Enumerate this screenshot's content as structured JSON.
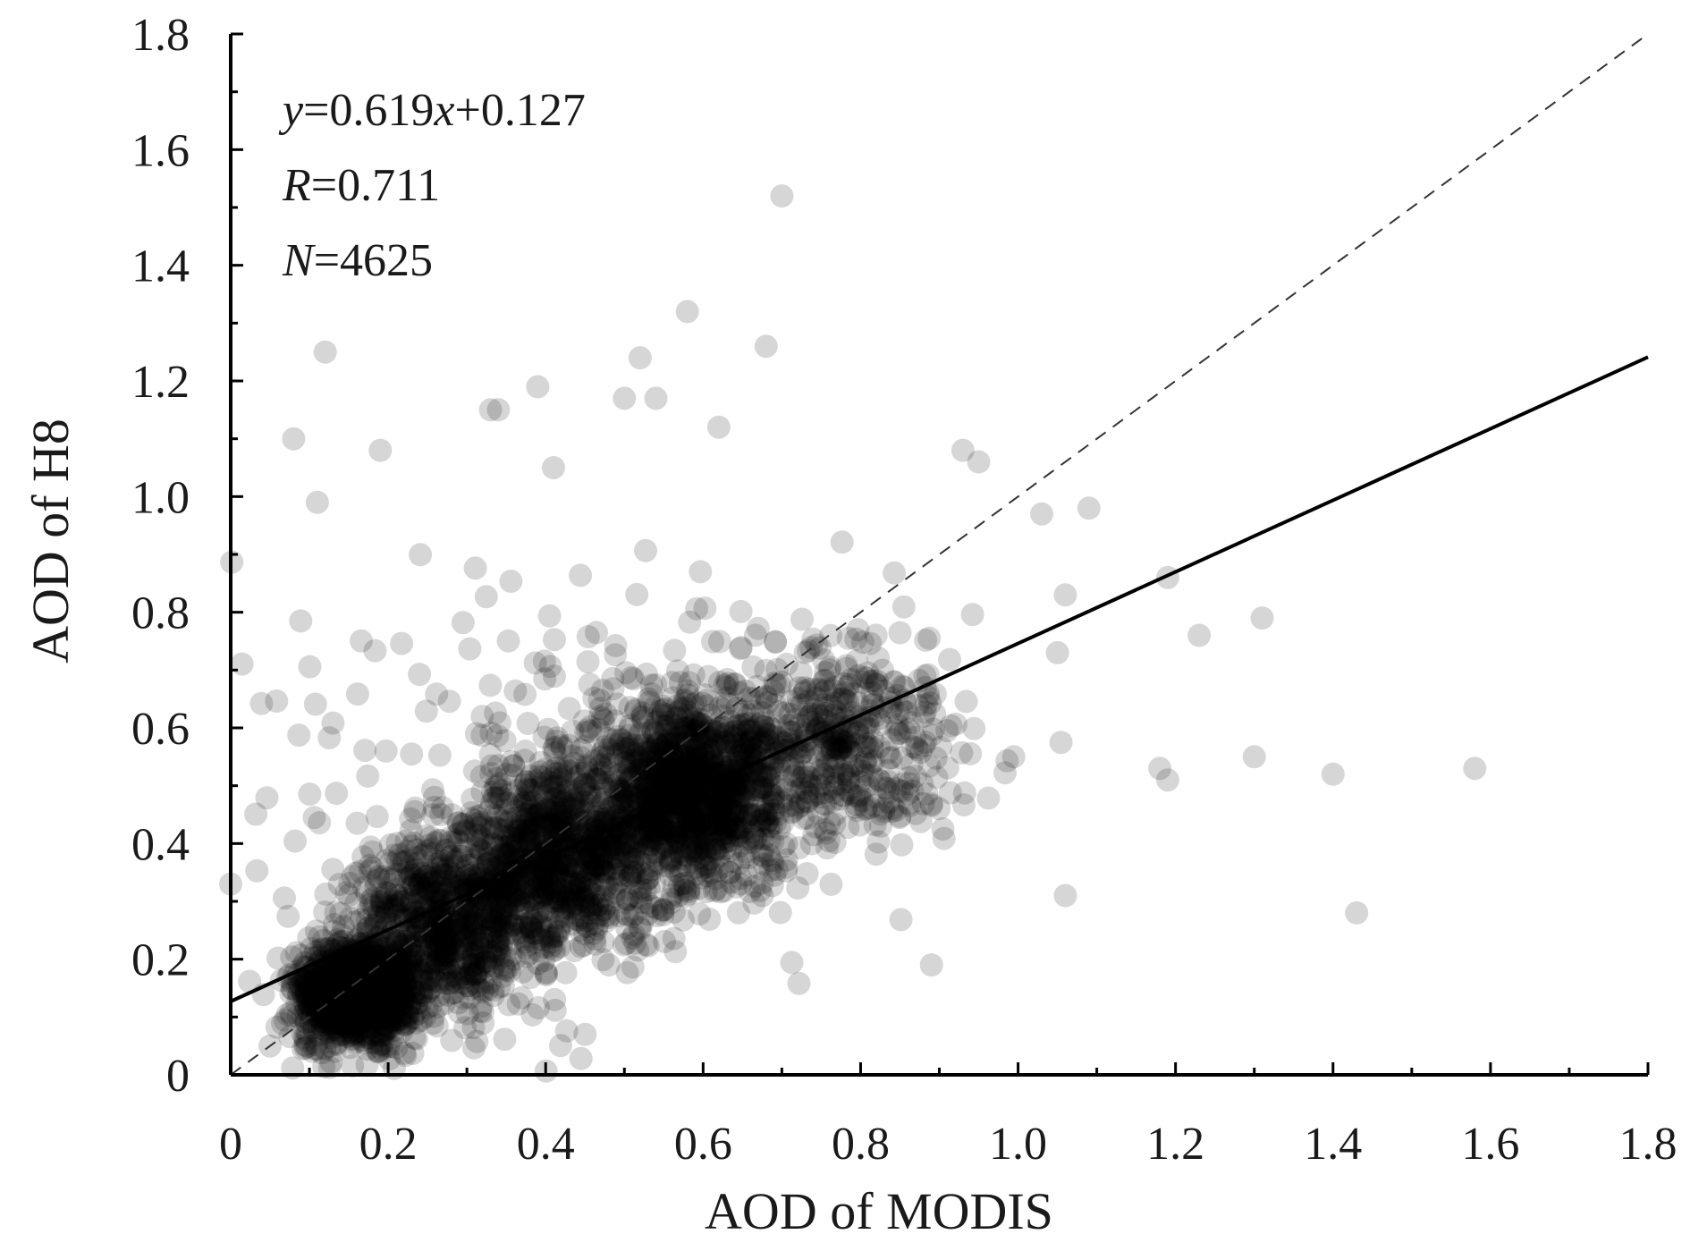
{
  "chart_data": {
    "type": "scatter",
    "xlabel": "AOD of MODIS",
    "ylabel": "AOD of H8",
    "xlim": [
      0,
      1.8
    ],
    "ylim": [
      0,
      1.8
    ],
    "x_ticks": [
      "0",
      "0.2",
      "0.4",
      "0.6",
      "0.8",
      "1.0",
      "1.2",
      "1.4",
      "1.6",
      "1.8"
    ],
    "y_ticks": [
      "0",
      "0.2",
      "0.4",
      "0.6",
      "0.8",
      "1.0",
      "1.2",
      "1.4",
      "1.6",
      "1.8"
    ],
    "grid": false,
    "annotations": {
      "equation_var_y": "y",
      "equation_eq1": "=0.619",
      "equation_var_x": "x",
      "equation_eq2": "+0.127",
      "r_var": "R",
      "r_value": "=0.711",
      "n_var": "N",
      "n_value": "=4625"
    },
    "regression": {
      "slope": 0.619,
      "intercept": 0.127,
      "R": 0.711,
      "N": 4625,
      "style": "solid"
    },
    "reference_line": {
      "slope": 1,
      "intercept": 0,
      "style": "dashed"
    },
    "clusters": [
      {
        "mx": 0.16,
        "my": 0.14,
        "sx": 0.04,
        "sy": 0.045,
        "w": 0.22
      },
      {
        "mx": 0.27,
        "my": 0.26,
        "sx": 0.06,
        "sy": 0.08,
        "w": 0.17
      },
      {
        "mx": 0.42,
        "my": 0.38,
        "sx": 0.06,
        "sy": 0.085,
        "w": 0.2
      },
      {
        "mx": 0.58,
        "my": 0.49,
        "sx": 0.06,
        "sy": 0.08,
        "w": 0.26
      },
      {
        "mx": 0.78,
        "my": 0.58,
        "sx": 0.07,
        "sy": 0.09,
        "w": 0.1
      },
      {
        "mx": 0.45,
        "my": 0.55,
        "sx": 0.25,
        "sy": 0.2,
        "w": 0.05
      }
    ],
    "points_estimated_sample": [
      [
        0.7,
        1.52
      ],
      [
        0.58,
        1.32
      ],
      [
        0.68,
        1.26
      ],
      [
        0.12,
        1.25
      ],
      [
        0.39,
        1.19
      ],
      [
        0.52,
        1.24
      ],
      [
        0.62,
        1.12
      ],
      [
        0.08,
        1.1
      ],
      [
        0.19,
        1.08
      ],
      [
        0.11,
        0.99
      ],
      [
        0.41,
        1.05
      ],
      [
        0.33,
        1.15
      ],
      [
        0.34,
        1.15
      ],
      [
        0.5,
        1.17
      ],
      [
        0.54,
        1.17
      ],
      [
        0.93,
        1.08
      ],
      [
        0.95,
        1.06
      ],
      [
        1.03,
        0.97
      ],
      [
        1.09,
        0.98
      ],
      [
        1.06,
        0.83
      ],
      [
        1.19,
        0.86
      ],
      [
        1.23,
        0.76
      ],
      [
        1.31,
        0.79
      ],
      [
        1.05,
        0.73
      ],
      [
        0.89,
        0.19
      ],
      [
        1.06,
        0.31
      ],
      [
        1.18,
        0.53
      ],
      [
        1.19,
        0.51
      ],
      [
        1.3,
        0.55
      ],
      [
        1.4,
        0.52
      ],
      [
        1.58,
        0.53
      ],
      [
        1.43,
        0.28
      ],
      [
        0.45,
        0.07
      ],
      [
        0.05,
        0.05
      ],
      [
        0.0,
        0.33
      ]
    ]
  }
}
